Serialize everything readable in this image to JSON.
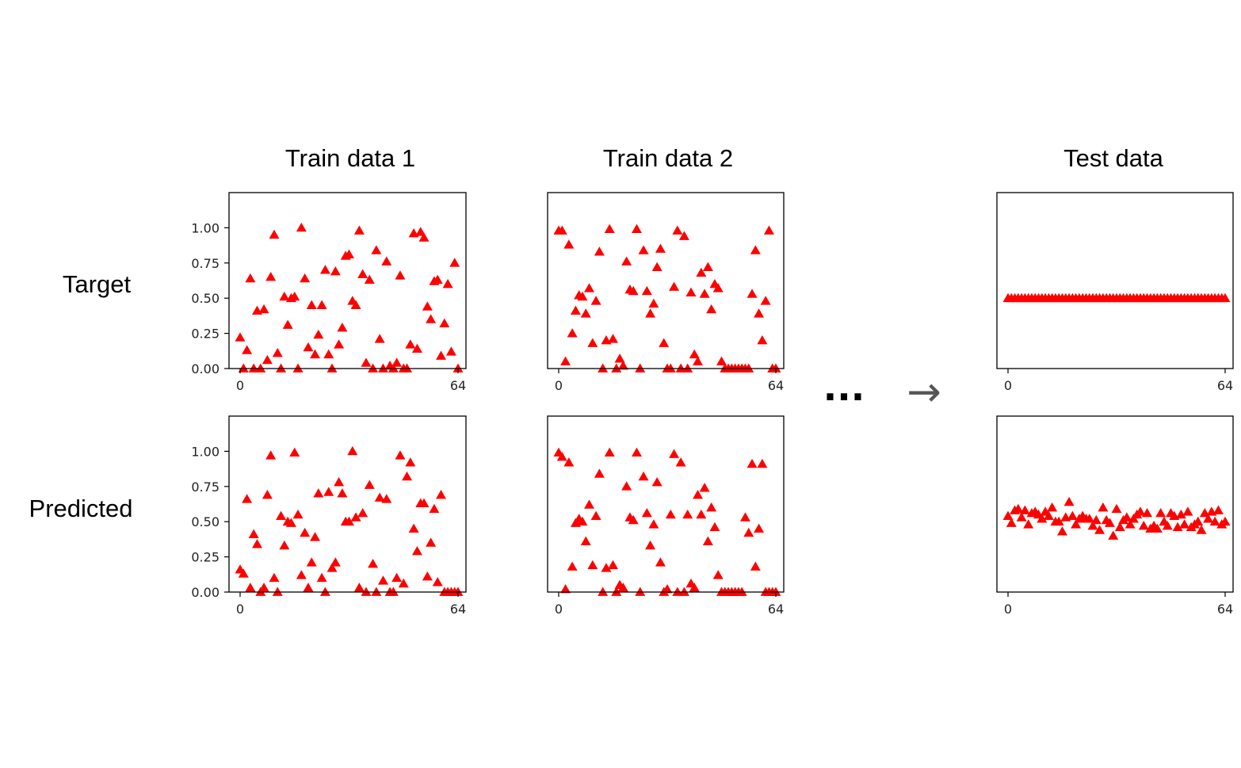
{
  "columns": [
    {
      "title": "Train data 1"
    },
    {
      "title": "Train data 2"
    },
    {
      "title": "Test data"
    }
  ],
  "rows": [
    {
      "label": "Target"
    },
    {
      "label": "Predicted"
    }
  ],
  "ellipsis": "...",
  "arrow": "→",
  "colors": {
    "marker": "#ff0000",
    "text": "#000000",
    "axis": "#000000",
    "arrow": "#555555"
  },
  "chart_data": [
    {
      "id": "train1-target",
      "type": "scatter",
      "marker": "triangle",
      "xlim": [
        0,
        64
      ],
      "ylim": [
        0,
        1.25
      ],
      "xticks": [
        "0",
        "64"
      ],
      "yticks": [
        "0.00",
        "0.25",
        "0.50",
        "0.75",
        "1.00"
      ],
      "x": [
        0,
        1,
        2,
        3,
        4,
        5,
        6,
        7,
        8,
        9,
        10,
        11,
        12,
        13,
        14,
        15,
        16,
        17,
        18,
        19,
        20,
        21,
        22,
        23,
        24,
        25,
        26,
        27,
        28,
        29,
        30,
        31,
        32,
        33,
        34,
        35,
        36,
        37,
        38,
        39,
        40,
        41,
        42,
        43,
        44,
        45,
        46,
        47,
        48,
        49,
        50,
        51,
        52,
        53,
        54,
        55,
        56,
        57,
        58,
        59,
        60,
        61,
        62,
        63,
        64
      ],
      "y": [
        0.22,
        0.0,
        0.13,
        0.64,
        0.0,
        0.41,
        0.0,
        0.42,
        0.06,
        0.65,
        0.95,
        0.11,
        0.0,
        0.51,
        0.31,
        0.5,
        0.51,
        0.0,
        1.0,
        0.64,
        0.15,
        0.45,
        0.1,
        0.24,
        0.45,
        0.7,
        0.1,
        0.0,
        0.69,
        0.17,
        0.29,
        0.8,
        0.81,
        0.48,
        0.45,
        0.98,
        0.67,
        0.04,
        0.63,
        0.0,
        0.84,
        0.21,
        0.0,
        0.76,
        0.02,
        0.0,
        0.04,
        0.66,
        0.0,
        0.0,
        0.17,
        0.96,
        0.14,
        0.97,
        0.93,
        0.44,
        0.35,
        0.62,
        0.63,
        0.09,
        0.32,
        0.6,
        0.12,
        0.75,
        0.0
      ]
    },
    {
      "id": "train2-target",
      "type": "scatter",
      "marker": "triangle",
      "xlim": [
        0,
        64
      ],
      "ylim": [
        0,
        1.25
      ],
      "xticks": [
        "0",
        "64"
      ],
      "yticks": [],
      "x": [
        0,
        1,
        2,
        3,
        4,
        5,
        6,
        7,
        8,
        9,
        10,
        11,
        12,
        13,
        14,
        15,
        16,
        17,
        18,
        19,
        20,
        21,
        22,
        23,
        24,
        25,
        26,
        27,
        28,
        29,
        30,
        31,
        32,
        33,
        34,
        35,
        36,
        37,
        38,
        39,
        40,
        41,
        42,
        43,
        44,
        45,
        46,
        47,
        48,
        49,
        50,
        51,
        52,
        53,
        54,
        55,
        56,
        57,
        58,
        59,
        60,
        61,
        62,
        63,
        64
      ],
      "y": [
        0.98,
        0.98,
        0.05,
        0.88,
        0.25,
        0.41,
        0.52,
        0.51,
        0.39,
        0.57,
        0.18,
        0.48,
        0.83,
        0.0,
        0.2,
        0.99,
        0.21,
        0.0,
        0.07,
        0.02,
        0.76,
        0.56,
        0.55,
        0.99,
        0.0,
        0.84,
        0.55,
        0.39,
        0.46,
        0.72,
        0.85,
        0.18,
        0.0,
        0.0,
        0.58,
        0.98,
        0.0,
        0.94,
        0.0,
        0.54,
        0.1,
        0.05,
        0.68,
        0.53,
        0.72,
        0.42,
        0.6,
        0.57,
        0.05,
        0.0,
        0.0,
        0.0,
        0.0,
        0.0,
        0.0,
        0.0,
        0.0,
        0.53,
        0.84,
        0.39,
        0.2,
        0.48,
        0.98,
        0.0,
        0.0
      ]
    },
    {
      "id": "test-target",
      "type": "scatter",
      "marker": "triangle",
      "xlim": [
        0,
        64
      ],
      "ylim": [
        0,
        1.25
      ],
      "xticks": [
        "0",
        "64"
      ],
      "yticks": [],
      "x": [
        0,
        1,
        2,
        3,
        4,
        5,
        6,
        7,
        8,
        9,
        10,
        11,
        12,
        13,
        14,
        15,
        16,
        17,
        18,
        19,
        20,
        21,
        22,
        23,
        24,
        25,
        26,
        27,
        28,
        29,
        30,
        31,
        32,
        33,
        34,
        35,
        36,
        37,
        38,
        39,
        40,
        41,
        42,
        43,
        44,
        45,
        46,
        47,
        48,
        49,
        50,
        51,
        52,
        53,
        54,
        55,
        56,
        57,
        58,
        59,
        60,
        61,
        62,
        63,
        64
      ],
      "y": [
        0.5,
        0.5,
        0.5,
        0.5,
        0.5,
        0.5,
        0.5,
        0.5,
        0.5,
        0.5,
        0.5,
        0.5,
        0.5,
        0.5,
        0.5,
        0.5,
        0.5,
        0.5,
        0.5,
        0.5,
        0.5,
        0.5,
        0.5,
        0.5,
        0.5,
        0.5,
        0.5,
        0.5,
        0.5,
        0.5,
        0.5,
        0.5,
        0.5,
        0.5,
        0.5,
        0.5,
        0.5,
        0.5,
        0.5,
        0.5,
        0.5,
        0.5,
        0.5,
        0.5,
        0.5,
        0.5,
        0.5,
        0.5,
        0.5,
        0.5,
        0.5,
        0.5,
        0.5,
        0.5,
        0.5,
        0.5,
        0.5,
        0.5,
        0.5,
        0.5,
        0.5,
        0.5,
        0.5,
        0.5,
        0.5
      ]
    },
    {
      "id": "train1-predicted",
      "type": "scatter",
      "marker": "triangle",
      "xlim": [
        0,
        64
      ],
      "ylim": [
        0,
        1.25
      ],
      "xticks": [
        "0",
        "64"
      ],
      "yticks": [
        "0.00",
        "0.25",
        "0.50",
        "0.75",
        "1.00"
      ],
      "x": [
        0,
        1,
        2,
        3,
        4,
        5,
        6,
        7,
        8,
        9,
        10,
        11,
        12,
        13,
        14,
        15,
        16,
        17,
        18,
        19,
        20,
        21,
        22,
        23,
        24,
        25,
        26,
        27,
        28,
        29,
        30,
        31,
        32,
        33,
        34,
        35,
        36,
        37,
        38,
        39,
        40,
        41,
        42,
        43,
        44,
        45,
        46,
        47,
        48,
        49,
        50,
        51,
        52,
        53,
        54,
        55,
        56,
        57,
        58,
        59,
        60,
        61,
        62,
        63,
        64
      ],
      "y": [
        0.16,
        0.13,
        0.66,
        0.03,
        0.41,
        0.34,
        0.0,
        0.03,
        0.69,
        0.97,
        0.1,
        0.0,
        0.54,
        0.33,
        0.5,
        0.49,
        0.99,
        0.55,
        0.12,
        0.42,
        0.03,
        0.21,
        0.39,
        0.7,
        0.1,
        0.0,
        0.71,
        0.17,
        0.21,
        0.78,
        0.7,
        0.5,
        0.5,
        1.0,
        0.53,
        0.03,
        0.56,
        0.0,
        0.76,
        0.2,
        0.0,
        0.67,
        0.08,
        0.66,
        0.0,
        0.0,
        0.1,
        0.97,
        0.06,
        0.82,
        0.92,
        0.45,
        0.29,
        0.63,
        0.63,
        0.11,
        0.35,
        0.59,
        0.07,
        0.69,
        0.0,
        0.0,
        0.0,
        0.0,
        0.0
      ]
    },
    {
      "id": "train2-predicted",
      "type": "scatter",
      "marker": "triangle",
      "xlim": [
        0,
        64
      ],
      "ylim": [
        0,
        1.25
      ],
      "xticks": [
        "0",
        "64"
      ],
      "yticks": [],
      "x": [
        0,
        1,
        2,
        3,
        4,
        5,
        6,
        7,
        8,
        9,
        10,
        11,
        12,
        13,
        14,
        15,
        16,
        17,
        18,
        19,
        20,
        21,
        22,
        23,
        24,
        25,
        26,
        27,
        28,
        29,
        30,
        31,
        32,
        33,
        34,
        35,
        36,
        37,
        38,
        39,
        40,
        41,
        42,
        43,
        44,
        45,
        46,
        47,
        48,
        49,
        50,
        51,
        52,
        53,
        54,
        55,
        56,
        57,
        58,
        59,
        60,
        61,
        62,
        63,
        64
      ],
      "y": [
        0.99,
        0.96,
        0.02,
        0.92,
        0.18,
        0.49,
        0.52,
        0.5,
        0.36,
        0.62,
        0.19,
        0.54,
        0.84,
        0.0,
        0.17,
        0.99,
        0.19,
        0.0,
        0.05,
        0.03,
        0.75,
        0.53,
        0.51,
        0.99,
        0.0,
        0.82,
        0.56,
        0.33,
        0.48,
        0.78,
        0.21,
        0.0,
        0.02,
        0.55,
        0.98,
        0.0,
        0.92,
        0.0,
        0.55,
        0.06,
        0.03,
        0.69,
        0.55,
        0.74,
        0.36,
        0.6,
        0.46,
        0.12,
        0.0,
        0.0,
        0.0,
        0.0,
        0.0,
        0.0,
        0.0,
        0.53,
        0.42,
        0.91,
        0.18,
        0.45,
        0.91,
        0.0,
        0.0,
        0.0,
        0.0
      ]
    },
    {
      "id": "test-predicted",
      "type": "scatter",
      "marker": "triangle",
      "xlim": [
        0,
        64
      ],
      "ylim": [
        0,
        1.25
      ],
      "xticks": [
        "0",
        "64"
      ],
      "yticks": [],
      "x": [
        0,
        1,
        2,
        3,
        4,
        5,
        6,
        7,
        8,
        9,
        10,
        11,
        12,
        13,
        14,
        15,
        16,
        17,
        18,
        19,
        20,
        21,
        22,
        23,
        24,
        25,
        26,
        27,
        28,
        29,
        30,
        31,
        32,
        33,
        34,
        35,
        36,
        37,
        38,
        39,
        40,
        41,
        42,
        43,
        44,
        45,
        46,
        47,
        48,
        49,
        50,
        51,
        52,
        53,
        54,
        55,
        56,
        57,
        58,
        59,
        60,
        61,
        62,
        63,
        64
      ],
      "y": [
        0.54,
        0.49,
        0.58,
        0.59,
        0.53,
        0.58,
        0.48,
        0.56,
        0.57,
        0.55,
        0.52,
        0.57,
        0.54,
        0.6,
        0.5,
        0.5,
        0.43,
        0.53,
        0.64,
        0.54,
        0.48,
        0.52,
        0.54,
        0.52,
        0.52,
        0.47,
        0.51,
        0.44,
        0.6,
        0.51,
        0.49,
        0.4,
        0.59,
        0.46,
        0.51,
        0.53,
        0.48,
        0.52,
        0.55,
        0.57,
        0.47,
        0.56,
        0.45,
        0.47,
        0.45,
        0.56,
        0.5,
        0.47,
        0.56,
        0.54,
        0.46,
        0.55,
        0.48,
        0.57,
        0.46,
        0.48,
        0.5,
        0.44,
        0.56,
        0.52,
        0.57,
        0.5,
        0.58,
        0.48,
        0.5
      ]
    }
  ]
}
